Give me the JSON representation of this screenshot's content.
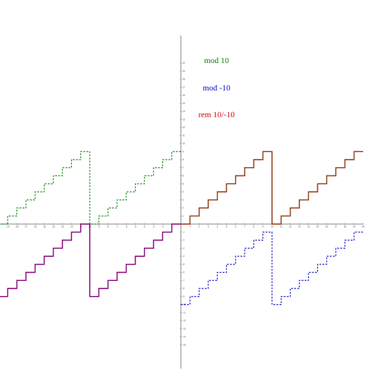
{
  "chart_data": {
    "type": "line",
    "title": "",
    "xlabel": "",
    "ylabel": "",
    "xlim": [
      -20,
      20
    ],
    "ylim": [
      -16,
      21
    ],
    "grid": false,
    "legend_position": "top-center",
    "x_ticks": [
      -19,
      -18,
      -17,
      -16,
      -15,
      -14,
      -13,
      -12,
      -11,
      -10,
      -9,
      -8,
      -7,
      -6,
      -5,
      -4,
      -3,
      -2,
      -1,
      1,
      2,
      3,
      4,
      5,
      6,
      7,
      8,
      9,
      10,
      11,
      12,
      13,
      14,
      15,
      16,
      17,
      18,
      19,
      20
    ],
    "y_ticks": [
      -15,
      -14,
      -13,
      -12,
      -11,
      -10,
      -9,
      -8,
      -7,
      -6,
      -5,
      -4,
      -3,
      -2,
      -1,
      1,
      2,
      3,
      4,
      5,
      6,
      7,
      8,
      9,
      10,
      11,
      12,
      13,
      14,
      15,
      16,
      17,
      18,
      19,
      20
    ],
    "series": [
      {
        "name": "mod 10",
        "color": "#008000",
        "dash": "dashed",
        "description": "x mod 10, staircase 0..9 with period 10 (drawn over x<0; coincides with rem for x>0)",
        "function": "mod_pos",
        "x_range": [
          -20,
          0
        ]
      },
      {
        "name": "mod -10",
        "color": "#0000cc",
        "dash": "dashed",
        "description": "x mod -10, staircase -10..-1 with period 10 (drawn over x>0; coincides with rem for x<0)",
        "function": "mod_neg",
        "x_range": [
          0,
          20
        ]
      },
      {
        "name": "rem 10/-10",
        "color": "#cc0000",
        "dash": "solid",
        "description": "x rem 10, staircase, sign follows x",
        "function": "rem",
        "x_range": [
          -20,
          20
        ]
      }
    ]
  }
}
